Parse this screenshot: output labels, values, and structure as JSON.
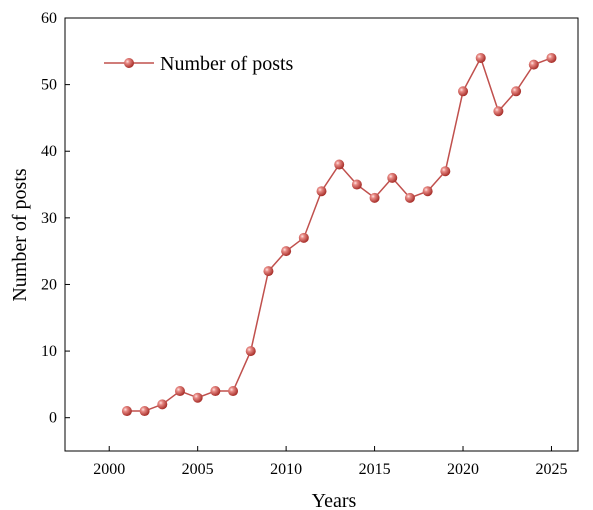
{
  "chart_data": {
    "type": "line",
    "title": "",
    "xlabel": "Years",
    "ylabel": "Number of posts",
    "xlim": [
      1997.5,
      2026.5
    ],
    "ylim": [
      -5,
      60
    ],
    "x_ticks": [
      2000,
      2005,
      2010,
      2015,
      2020,
      2025
    ],
    "y_ticks": [
      0,
      10,
      20,
      30,
      40,
      50,
      60
    ],
    "x_tick_labels": [
      "2000",
      "2005",
      "2010",
      "2015",
      "2020",
      "2025"
    ],
    "y_tick_labels": [
      "0",
      "10",
      "20",
      "30",
      "40",
      "50",
      "60"
    ],
    "grid": false,
    "legend_position": "top-left",
    "series": [
      {
        "name": "Number of posts",
        "color": "#c0504d",
        "x": [
          2001,
          2002,
          2003,
          2004,
          2005,
          2006,
          2007,
          2008,
          2009,
          2010,
          2011,
          2012,
          2013,
          2014,
          2015,
          2016,
          2017,
          2018,
          2019,
          2020,
          2021,
          2022,
          2023,
          2024,
          2025
        ],
        "y": [
          1,
          1,
          2,
          4,
          3,
          4,
          4,
          10,
          22,
          25,
          27,
          34,
          38,
          35,
          33,
          36,
          33,
          34,
          37,
          49,
          54,
          46,
          49,
          53,
          54
        ]
      }
    ]
  }
}
